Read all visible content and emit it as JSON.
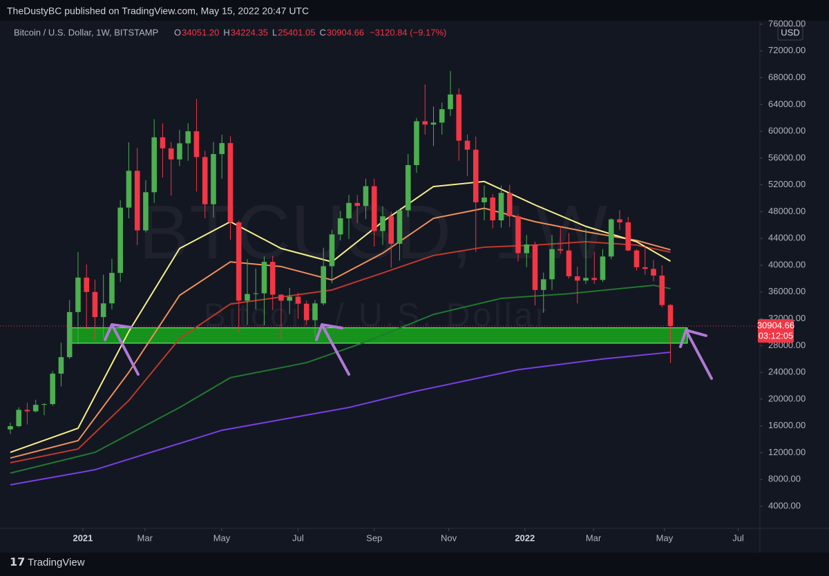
{
  "header": "TheDustyBC published on TradingView.com, May 15, 2022 20:47 UTC",
  "footer": "TradingView",
  "chart_data": {
    "type": "candlestick",
    "symbol": "Bitcoin / U.S. Dollar, 1W, BITSTAMP",
    "watermark": "BTCUSD, 1W",
    "watermark_sub": "Bitcoin / U.S. Dollar",
    "currency": "USD",
    "ohlc_keys": [
      "O",
      "H",
      "L",
      "C"
    ],
    "ohlc_labels": [
      "34051.20",
      "34224.35",
      "25401.05",
      "30904.66"
    ],
    "change_label": "−3120.84 (−9.17%)",
    "price_label": "30904.66",
    "countdown": "03:12:05",
    "up_color": "#4caf50",
    "down_color": "#f23645",
    "x": [
      0,
      1,
      2,
      3,
      4,
      5,
      6,
      7,
      8,
      9,
      10,
      11,
      12,
      13,
      14,
      15,
      16,
      17,
      18,
      19,
      20,
      21,
      22,
      23,
      24,
      25,
      26,
      27,
      28,
      29,
      30,
      31,
      32,
      33,
      34,
      35,
      36,
      37,
      38,
      39,
      40,
      41,
      42,
      43,
      44,
      45,
      46,
      47,
      48,
      49,
      50,
      51,
      52,
      53,
      54,
      55,
      56,
      57,
      58,
      59,
      60,
      61,
      62,
      63,
      64,
      65,
      66,
      67,
      68,
      69,
      70,
      71,
      72,
      73,
      74,
      75,
      76,
      77,
      78
    ],
    "open": [
      15480,
      15960,
      18400,
      18180,
      19150,
      19260,
      23800,
      26270,
      33000,
      38150,
      36000,
      32250,
      34300,
      38850,
      48600,
      54100,
      45200,
      50900,
      59100,
      57450,
      55800,
      58200,
      60000,
      56150,
      49100,
      56600,
      58240,
      46400,
      34700,
      35700,
      35800,
      40500,
      35600,
      34700,
      35300,
      34250,
      31800,
      34300,
      39850,
      44600,
      47000,
      49300,
      48850,
      51800,
      45100,
      47300,
      43200,
      48200,
      54950,
      61500,
      61000,
      61300,
      63300,
      65500,
      58600,
      57250,
      49400,
      50100,
      46700,
      50800,
      47300,
      41800,
      43100,
      36300,
      37900,
      42400,
      42200,
      38350,
      37700,
      38100,
      37800,
      41300,
      46850,
      46400,
      42200,
      39700,
      39450,
      38450,
      34051.2
    ],
    "high": [
      16480,
      18800,
      19480,
      19900,
      19400,
      24200,
      28400,
      34800,
      41950,
      40100,
      37850,
      38600,
      40950,
      49700,
      58350,
      57500,
      52700,
      61800,
      61200,
      58400,
      60200,
      61200,
      64850,
      57100,
      58400,
      59500,
      59300,
      46650,
      40900,
      39500,
      41300,
      41400,
      35700,
      36600,
      35900,
      34700,
      34800,
      42600,
      45300,
      48100,
      50500,
      50500,
      52900,
      52900,
      48800,
      48000,
      48400,
      56600,
      62000,
      67000,
      63700,
      64300,
      69000,
      66400,
      59500,
      59200,
      51900,
      50600,
      51900,
      52000,
      47600,
      44500,
      43500,
      38900,
      44500,
      45800,
      44800,
      39800,
      45400,
      42000,
      42400,
      47000,
      48200,
      47200,
      42400,
      42950,
      40800,
      40000,
      34224.35
    ],
    "low": [
      14800,
      15800,
      16200,
      18000,
      17600,
      19000,
      21900,
      26000,
      28200,
      30300,
      28800,
      29200,
      33400,
      37500,
      47000,
      43000,
      44900,
      49300,
      53100,
      50400,
      54800,
      55600,
      51000,
      47000,
      47100,
      52900,
      43800,
      30000,
      31100,
      33400,
      31000,
      33300,
      28800,
      32700,
      32000,
      31100,
      29300,
      34000,
      37300,
      43700,
      43900,
      46300,
      46900,
      42800,
      43000,
      39600,
      40700,
      47200,
      53800,
      59500,
      57800,
      59500,
      62300,
      55600,
      53300,
      42000,
      46700,
      45500,
      45600,
      45700,
      40600,
      39700,
      34000,
      32900,
      36300,
      41700,
      38000,
      34300,
      37200,
      37200,
      37500,
      40900,
      45300,
      42100,
      39200,
      38600,
      37600,
      33700,
      25401.05
    ],
    "close": [
      15960,
      18400,
      18180,
      19150,
      19260,
      23800,
      26270,
      33000,
      38150,
      36000,
      32250,
      34300,
      38850,
      48600,
      54100,
      45200,
      50900,
      59100,
      57450,
      55800,
      58200,
      60000,
      56150,
      49100,
      56600,
      58240,
      46400,
      34700,
      35700,
      35800,
      40500,
      35600,
      34700,
      35300,
      34250,
      31800,
      34300,
      39850,
      44600,
      47000,
      49300,
      48850,
      51800,
      45100,
      47300,
      43200,
      48200,
      54950,
      61500,
      61000,
      61300,
      63300,
      65500,
      58600,
      57250,
      49400,
      50100,
      46700,
      50800,
      47300,
      41800,
      43100,
      36300,
      37900,
      42400,
      42200,
      38350,
      37700,
      38100,
      37800,
      41300,
      46850,
      46400,
      42200,
      39700,
      39450,
      38450,
      34050,
      30904.66
    ],
    "lines": [
      {
        "color": "#7b3fe4",
        "x": [
          0,
          10,
          25,
          40,
          48,
          60,
          70,
          78
        ],
        "values": [
          7200,
          9450,
          15350,
          18750,
          21200,
          24400,
          26000,
          27000
        ]
      },
      {
        "color": "#1f7a2e",
        "x": [
          0,
          10,
          20,
          26,
          35,
          42,
          50,
          58,
          66,
          72,
          76,
          78
        ],
        "values": [
          8950,
          12050,
          18750,
          23200,
          25450,
          28550,
          32650,
          35050,
          35750,
          36500,
          37000,
          36500
        ]
      },
      {
        "color": "#c0392b",
        "x": [
          0,
          8,
          14,
          20,
          26,
          32,
          38,
          44,
          50,
          56,
          62,
          68,
          74,
          78
        ],
        "values": [
          10500,
          12550,
          19800,
          29050,
          34200,
          35250,
          36300,
          38850,
          41450,
          42700,
          43000,
          43500,
          43000,
          41950
        ]
      },
      {
        "color": "#f0905a",
        "x": [
          0,
          8,
          14,
          20,
          26,
          32,
          38,
          44,
          50,
          56,
          62,
          68,
          74,
          78
        ],
        "values": [
          11200,
          13800,
          24000,
          35500,
          40500,
          39800,
          37800,
          41800,
          47000,
          48500,
          46500,
          45000,
          43700,
          42300
        ]
      },
      {
        "color": "#f8f08a",
        "x": [
          0,
          8,
          14,
          20,
          26,
          32,
          38,
          44,
          50,
          56,
          62,
          68,
          74,
          78
        ],
        "values": [
          12050,
          15650,
          30100,
          42500,
          46500,
          42500,
          40500,
          46500,
          51750,
          52500,
          49000,
          45800,
          43500,
          40600
        ]
      }
    ],
    "zone": {
      "x": [
        7,
        80
      ],
      "y": [
        28350,
        30650
      ],
      "color": "#18a81c"
    },
    "xlim": [
      -1.22,
      88.57
    ],
    "xticks": [
      {
        "value": 8.57,
        "label": "2021"
      },
      {
        "value": 15.9,
        "label": "Mar"
      },
      {
        "value": 24.98,
        "label": "May"
      },
      {
        "value": 34.0,
        "label": "Jul"
      },
      {
        "value": 43.0,
        "label": "Sep"
      },
      {
        "value": 51.8,
        "label": "Nov"
      },
      {
        "value": 60.8,
        "label": "2022"
      },
      {
        "value": 68.9,
        "label": "Mar"
      },
      {
        "value": 77.3,
        "label": "May"
      },
      {
        "value": 86.0,
        "label": "Jul"
      }
    ],
    "ylim": [
      700,
      76720
    ],
    "yticks": [
      {
        "value": 4000,
        "label": "4000.00"
      },
      {
        "value": 8000,
        "label": "8000.00"
      },
      {
        "value": 12000,
        "label": "12000.00"
      },
      {
        "value": 16000,
        "label": "16000.00"
      },
      {
        "value": 20000,
        "label": "20000.00"
      },
      {
        "value": 24000,
        "label": "24000.00"
      },
      {
        "value": 28000,
        "label": "28000.00"
      },
      {
        "value": 32000,
        "label": "32000.00"
      },
      {
        "value": 36000,
        "label": "36000.00"
      },
      {
        "value": 40000,
        "label": "40000.00"
      },
      {
        "value": 44000,
        "label": "44000.00"
      },
      {
        "value": 48000,
        "label": "48000.00"
      },
      {
        "value": 52000,
        "label": "52000.00"
      },
      {
        "value": 56000,
        "label": "56000.00"
      },
      {
        "value": 60000,
        "label": "60000.00"
      },
      {
        "value": 64000,
        "label": "64000.00"
      },
      {
        "value": 68000,
        "label": "68000.00"
      },
      {
        "value": 72000,
        "label": "72000.00"
      },
      {
        "value": 76000,
        "label": "76000.00"
      }
    ]
  }
}
